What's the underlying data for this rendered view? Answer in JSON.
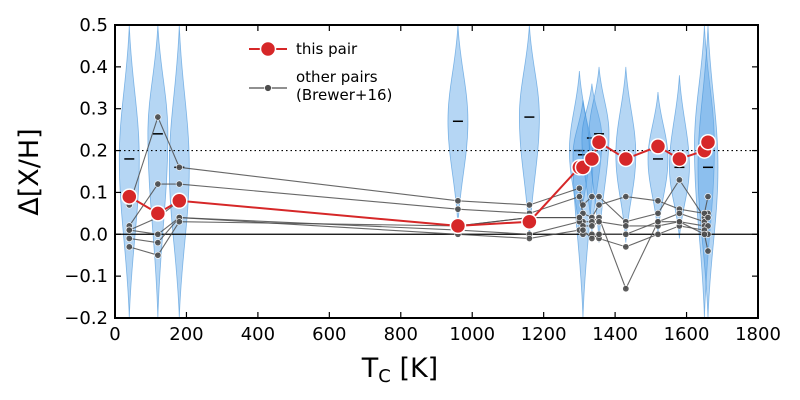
{
  "chart_data": {
    "type": "scatter",
    "title": "",
    "xlabel": "T_C [K]",
    "ylabel": "Δ[X/H]",
    "xlim": [
      0,
      1800
    ],
    "ylim": [
      -0.2,
      0.5
    ],
    "xticks": [
      0,
      200,
      400,
      600,
      800,
      1000,
      1200,
      1400,
      1600,
      1800
    ],
    "yticks": [
      -0.2,
      -0.1,
      0.0,
      0.1,
      0.2,
      0.3,
      0.4,
      0.5
    ],
    "grid": false,
    "legend_position": "top-center",
    "colors": {
      "this_pair": "#d62728",
      "other_pairs": "#4d4d4d",
      "violin_fill": "#5aa5e6",
      "violin_edge": "#3d8fd9"
    },
    "reference_lines": [
      {
        "y": 0.0,
        "style": "solid"
      },
      {
        "y": 0.2,
        "style": "dotted"
      }
    ],
    "series": [
      {
        "name": "this pair",
        "style": "line-marker",
        "x": [
          40,
          120,
          180,
          960,
          1160,
          1300,
          1310,
          1335,
          1355,
          1430,
          1520,
          1580,
          1650,
          1660
        ],
        "y": [
          0.09,
          0.05,
          0.08,
          0.02,
          0.03,
          0.16,
          0.16,
          0.18,
          0.22,
          0.18,
          0.21,
          0.18,
          0.2,
          0.22
        ]
      },
      {
        "name": "other pairs\n(Brewer+16)",
        "style": "line-marker",
        "x": [
          40,
          120,
          180,
          960,
          1160,
          1300,
          1310,
          1335,
          1355,
          1430,
          1520,
          1580,
          1650,
          1660
        ]
      }
    ],
    "other_pairs_lines": [
      [
        0.07,
        0.28,
        0.16,
        0.08,
        0.07,
        0.11,
        0.07,
        0.09,
        0.09,
        0.03,
        0.05,
        0.13,
        0.04,
        0.05
      ],
      [
        0.02,
        0.12,
        0.12,
        0.06,
        0.05,
        0.09,
        0.05,
        0.04,
        0.07,
        0.09,
        0.08,
        0.06,
        0.05,
        0.09
      ],
      [
        0.01,
        0.04,
        0.08,
        0.02,
        0.04,
        0.04,
        0.03,
        0.03,
        0.04,
        -0.13,
        0.03,
        0.05,
        0.03,
        0.04
      ],
      [
        -0.01,
        -0.02,
        0.04,
        0.01,
        0.0,
        0.03,
        0.02,
        0.02,
        0.03,
        0.02,
        0.02,
        0.03,
        0.02,
        0.02
      ],
      [
        0.01,
        0.0,
        0.04,
        0.0,
        -0.01,
        0.01,
        0.0,
        0.0,
        -0.01,
        -0.03,
        0.0,
        0.02,
        0.01,
        0.0
      ],
      [
        -0.03,
        -0.05,
        0.03,
        0.02,
        0.04,
        0.04,
        0.01,
        -0.01,
        0.0,
        0.0,
        0.03,
        0.03,
        0.0,
        -0.04
      ]
    ],
    "violins": [
      {
        "x": 40,
        "center": 0.18,
        "low": -0.2,
        "high": 0.5
      },
      {
        "x": 120,
        "center": 0.24,
        "low": -0.2,
        "high": 0.5
      },
      {
        "x": 180,
        "center": 0.16,
        "low": -0.2,
        "high": 0.5
      },
      {
        "x": 960,
        "center": 0.27,
        "low": 0.02,
        "high": 0.5
      },
      {
        "x": 1160,
        "center": 0.28,
        "low": -0.01,
        "high": 0.5
      },
      {
        "x": 1300,
        "center": 0.2,
        "low": 0.0,
        "high": 0.39
      },
      {
        "x": 1310,
        "center": 0.19,
        "low": -0.2,
        "high": 0.32
      },
      {
        "x": 1335,
        "center": 0.23,
        "low": 0.0,
        "high": 0.36
      },
      {
        "x": 1355,
        "center": 0.24,
        "low": -0.02,
        "high": 0.4
      },
      {
        "x": 1430,
        "center": 0.19,
        "low": -0.02,
        "high": 0.4
      },
      {
        "x": 1520,
        "center": 0.18,
        "low": 0.0,
        "high": 0.34
      },
      {
        "x": 1580,
        "center": 0.16,
        "low": -0.01,
        "high": 0.38
      },
      {
        "x": 1650,
        "center": 0.21,
        "low": -0.2,
        "high": 0.5
      },
      {
        "x": 1660,
        "center": 0.16,
        "low": -0.2,
        "high": 0.5
      }
    ]
  }
}
